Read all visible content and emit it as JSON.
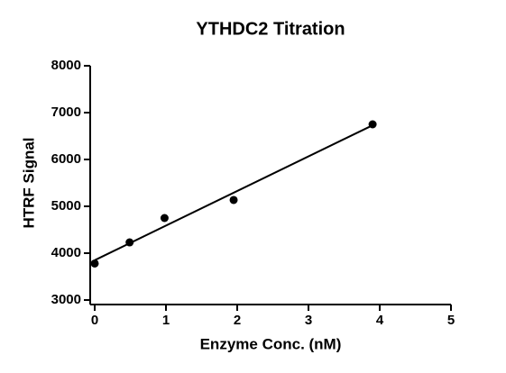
{
  "chart_data": {
    "type": "scatter",
    "title": "YTHDC2 Titration",
    "x_label": "Enzyme Conc. (nM)",
    "y_label": "HTRF Signal",
    "series": [
      {
        "x": [
          0,
          0.49,
          0.98,
          1.95,
          3.9
        ],
        "values": [
          3780,
          4230,
          4750,
          5135,
          6750
        ],
        "marker": "circle",
        "color": "#000000"
      },
      {
        "x": [
          0,
          3.9
        ],
        "values": [
          3850,
          6730
        ],
        "marker": "line",
        "color": "#000000"
      }
    ],
    "xlim": [
      0,
      5
    ],
    "xticks": [
      0,
      1,
      2,
      3,
      4,
      5
    ],
    "ylim": [
      3000,
      8000
    ],
    "yticks": [
      3000,
      4000,
      5000,
      6000,
      7000,
      8000
    ],
    "grid": false
  }
}
